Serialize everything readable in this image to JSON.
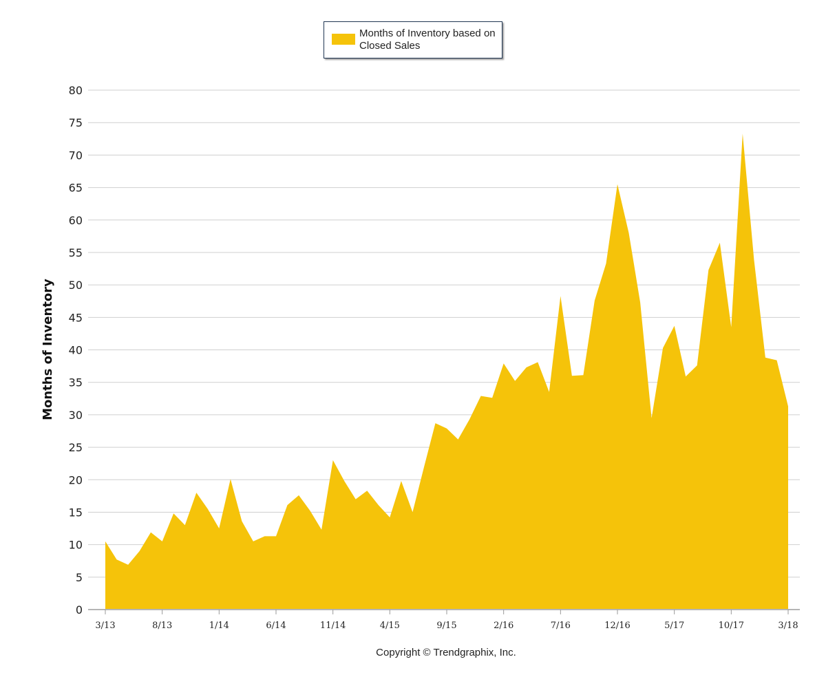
{
  "legend": {
    "label": "Months of Inventory based on Closed Sales",
    "color": "#f5c30a"
  },
  "copyright": "Copyright © Trendgraphix, Inc.",
  "chart_data": {
    "type": "area",
    "title": "",
    "xlabel": "",
    "ylabel": "Months of Inventory",
    "ylim": [
      0,
      80
    ],
    "y_ticks": [
      0,
      5,
      10,
      15,
      20,
      25,
      30,
      35,
      40,
      45,
      50,
      55,
      60,
      65,
      70,
      75,
      80
    ],
    "x_tick_labels": [
      "3/13",
      "8/13",
      "1/14",
      "6/14",
      "11/14",
      "4/15",
      "9/15",
      "2/16",
      "7/16",
      "12/16",
      "5/17",
      "10/17",
      "3/18"
    ],
    "x_tick_every": 5,
    "grid": true,
    "legend_position": "top-center",
    "series": [
      {
        "name": "Months of Inventory based on Closed Sales",
        "color": "#f5c30a",
        "x": [
          "3/13",
          "4/13",
          "5/13",
          "6/13",
          "7/13",
          "8/13",
          "9/13",
          "10/13",
          "11/13",
          "12/13",
          "1/14",
          "2/14",
          "3/14",
          "4/14",
          "5/14",
          "6/14",
          "7/14",
          "8/14",
          "9/14",
          "10/14",
          "11/14",
          "12/14",
          "1/15",
          "2/15",
          "3/15",
          "4/15",
          "5/15",
          "6/15",
          "7/15",
          "8/15",
          "9/15",
          "10/15",
          "11/15",
          "12/15",
          "1/16",
          "2/16",
          "3/16",
          "4/16",
          "5/16",
          "6/16",
          "7/16",
          "8/16",
          "9/16",
          "10/16",
          "11/16",
          "12/16",
          "1/17",
          "2/17",
          "3/17",
          "4/17",
          "5/17",
          "6/17",
          "7/17",
          "8/17",
          "9/17",
          "10/17",
          "11/17",
          "12/17",
          "1/18",
          "2/18",
          "3/18"
        ],
        "values": [
          10.5,
          7.7,
          6.9,
          9.0,
          11.9,
          10.5,
          14.8,
          13.0,
          18.0,
          15.5,
          12.5,
          20.1,
          13.6,
          10.5,
          11.3,
          11.3,
          16.1,
          17.6,
          15.2,
          12.3,
          23.0,
          19.8,
          17.0,
          18.3,
          16.1,
          14.2,
          19.8,
          15.0,
          21.9,
          28.7,
          27.9,
          26.2,
          29.3,
          32.9,
          32.6,
          37.9,
          35.2,
          37.3,
          38.1,
          33.5,
          48.3,
          36.0,
          36.1,
          47.6,
          53.3,
          65.5,
          58.0,
          47.3,
          29.5,
          40.3,
          43.7,
          35.9,
          37.6,
          52.3,
          56.5,
          43.5,
          73.3,
          53.9,
          38.8,
          38.4,
          31.3
        ]
      }
    ]
  }
}
